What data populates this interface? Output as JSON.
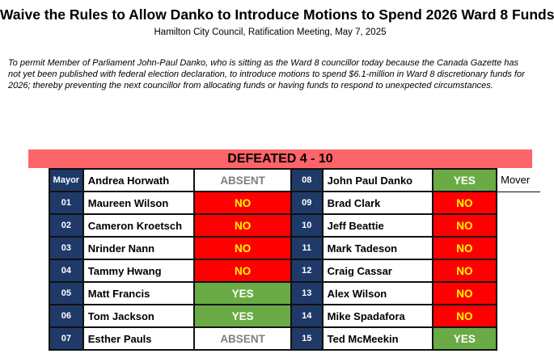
{
  "header": {
    "title": "Waive the Rules to Allow Danko to Introduce Motions to Spend 2026 Ward 8 Funds",
    "subtitle": "Hamilton City Council, Ratification Meeting, May 7, 2025",
    "description": "To permit Member of Parliament John-Paul Danko, who is sitting as the Ward 8 councillor today because the Canada Gazette has not yet been published with federal election declaration, to introduce motions to spend $6.1-million in Ward 8 discretionary funds for 2026; thereby preventing the next councillor from allocating funds or having funds to respond to unexpected circumstances."
  },
  "result": {
    "label": "DEFEATED 4 - 10"
  },
  "colors": {
    "banner": "#fe6468",
    "ward_cell": "#1f3a68",
    "no": "#ff0000",
    "no_text": "#ffff00",
    "yes": "#6aab46",
    "absent_text": "#7f7f7f"
  },
  "rows": [
    {
      "left_ward": "Mayor",
      "left_name": "Andrea Horwath",
      "left_vote": "ABSENT",
      "right_ward": "08",
      "right_name": "John Paul Danko",
      "right_vote": "YES",
      "note": "Mover"
    },
    {
      "left_ward": "01",
      "left_name": "Maureen Wilson",
      "left_vote": "NO",
      "right_ward": "09",
      "right_name": "Brad Clark",
      "right_vote": "NO",
      "note": ""
    },
    {
      "left_ward": "02",
      "left_name": "Cameron Kroetsch",
      "left_vote": "NO",
      "right_ward": "10",
      "right_name": "Jeff Beattie",
      "right_vote": "NO",
      "note": ""
    },
    {
      "left_ward": "03",
      "left_name": "Nrinder Nann",
      "left_vote": "NO",
      "right_ward": "11",
      "right_name": "Mark Tadeson",
      "right_vote": "NO",
      "note": ""
    },
    {
      "left_ward": "04",
      "left_name": "Tammy Hwang",
      "left_vote": "NO",
      "right_ward": "12",
      "right_name": "Craig Cassar",
      "right_vote": "NO",
      "note": ""
    },
    {
      "left_ward": "05",
      "left_name": "Matt Francis",
      "left_vote": "YES",
      "right_ward": "13",
      "right_name": "Alex Wilson",
      "right_vote": "NO",
      "note": ""
    },
    {
      "left_ward": "06",
      "left_name": "Tom Jackson",
      "left_vote": "YES",
      "right_ward": "14",
      "right_name": "Mike Spadafora",
      "right_vote": "NO",
      "note": ""
    },
    {
      "left_ward": "07",
      "left_name": "Esther Pauls",
      "left_vote": "ABSENT",
      "right_ward": "15",
      "right_name": "Ted McMeekin",
      "right_vote": "YES",
      "note": ""
    }
  ]
}
